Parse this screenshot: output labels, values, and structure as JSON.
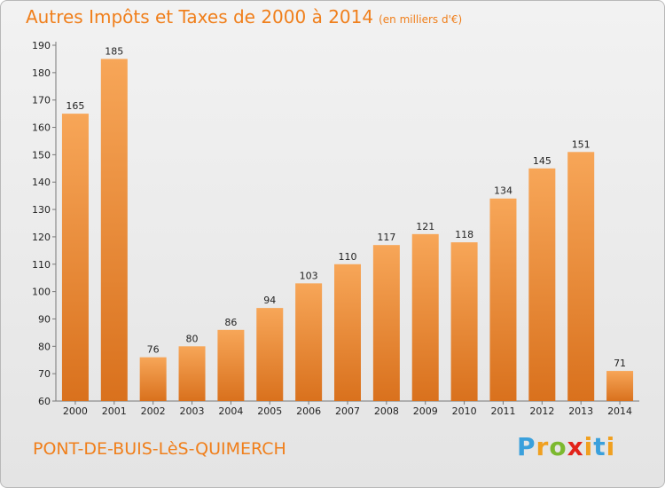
{
  "header": {
    "title": "Autres Impôts et Taxes de 2000 à 2014",
    "subtitle": "(en milliers d'€)"
  },
  "footer": {
    "commune": "PONT-DE-BUIS-LèS-QUIMERCH",
    "logo": "Proxiti"
  },
  "colors": {
    "bar_light": "#f7a658",
    "bar_dark": "#d9711d",
    "title": "#f07f1b"
  },
  "chart_data": {
    "type": "bar",
    "title": "Autres Impôts et Taxes de 2000 à 2014",
    "subtitle": "(en milliers d'€)",
    "xlabel": "",
    "ylabel": "",
    "categories": [
      "2000",
      "2001",
      "2002",
      "2003",
      "2004",
      "2005",
      "2006",
      "2007",
      "2008",
      "2009",
      "2010",
      "2011",
      "2012",
      "2013",
      "2014"
    ],
    "values": [
      165,
      185,
      76,
      80,
      86,
      94,
      103,
      110,
      117,
      121,
      118,
      134,
      145,
      151,
      71
    ],
    "ylim": [
      60,
      190
    ],
    "yticks": [
      60,
      70,
      80,
      90,
      100,
      110,
      120,
      130,
      140,
      150,
      160,
      170,
      180,
      190
    ],
    "grid": false,
    "legend": "none"
  }
}
